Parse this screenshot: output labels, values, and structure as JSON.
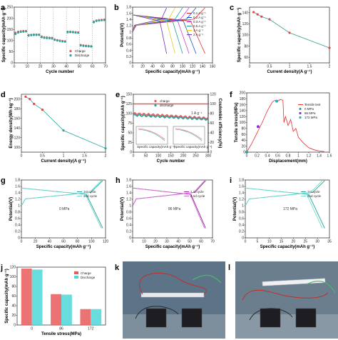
{
  "chart_data": [
    {
      "panel": "a",
      "type": "scatter",
      "xlabel": "Cycle number",
      "ylabel": "Specific capacity(mAh g⁻¹)",
      "xlim": [
        0,
        70
      ],
      "ylim": [
        0,
        250
      ],
      "xticks": [
        0,
        10,
        20,
        30,
        40,
        50,
        60,
        70
      ],
      "yticks": [
        0,
        50,
        100,
        150,
        200,
        250
      ],
      "grid_lines_x": [
        10,
        20,
        30,
        40,
        50,
        60
      ],
      "legend": "lower-right",
      "series": [
        {
          "name": "Charge",
          "color": "#e85a5a",
          "x": [
            1,
            3,
            5,
            7,
            9,
            11,
            13,
            15,
            17,
            19,
            21,
            23,
            25,
            27,
            29,
            31,
            33,
            35,
            37,
            39,
            41,
            43,
            45,
            47,
            49,
            51,
            53,
            55,
            57,
            59,
            61,
            63,
            65,
            67,
            69
          ],
          "y": [
            135,
            140,
            142,
            143,
            143,
            125,
            126,
            127,
            127,
            127,
            118,
            115,
            114,
            113,
            112,
            105,
            102,
            100,
            98,
            97,
            140,
            140,
            139,
            138,
            137,
            80,
            78,
            77,
            76,
            75,
            185,
            190,
            192,
            193,
            194
          ]
        },
        {
          "name": "Discharge",
          "color": "#2aa19a",
          "x": [
            1,
            3,
            5,
            7,
            9,
            11,
            13,
            15,
            17,
            19,
            21,
            23,
            25,
            27,
            29,
            31,
            33,
            35,
            37,
            39,
            41,
            43,
            45,
            47,
            49,
            51,
            53,
            55,
            57,
            59,
            61,
            63,
            65,
            67,
            69
          ],
          "y": [
            130,
            136,
            139,
            140,
            141,
            122,
            124,
            125,
            125,
            125,
            115,
            112,
            111,
            110,
            109,
            103,
            100,
            98,
            96,
            95,
            137,
            138,
            137,
            136,
            135,
            78,
            76,
            75,
            74,
            73,
            182,
            188,
            190,
            191,
            192
          ]
        }
      ]
    },
    {
      "panel": "b",
      "type": "line",
      "xlabel": "Specific capacity(mAh g⁻¹)",
      "ylabel": "Potential(V)",
      "xlim": [
        0,
        160
      ],
      "ylim": [
        0.0,
        1.8
      ],
      "xticks": [
        0,
        20,
        40,
        60,
        80,
        100,
        120,
        140,
        160
      ],
      "yticks": [
        0.0,
        0.2,
        0.4,
        0.6,
        0.8,
        1.0,
        1.2,
        1.4,
        1.6,
        1.8
      ],
      "legend": "top-right",
      "series": [
        {
          "name": "0.1 A g⁻¹",
          "color": "#e03030",
          "capacity": 145
        },
        {
          "name": "0.2 A g⁻¹",
          "color": "#2050d0",
          "capacity": 127
        },
        {
          "name": "0.3 A g⁻¹",
          "color": "#d040d0",
          "capacity": 113
        },
        {
          "name": "0.5 A g⁻¹",
          "color": "#20a0a0",
          "capacity": 100
        },
        {
          "name": "1 A g⁻¹",
          "color": "#e0d020",
          "capacity": 85
        },
        {
          "name": "2 A g⁻¹",
          "color": "#7030b0",
          "capacity": 68
        }
      ]
    },
    {
      "panel": "c",
      "type": "line",
      "xlabel": "Current density(A g⁻¹)",
      "ylabel": "Specific capacity(mAh g⁻¹)",
      "xlim": [
        0.0,
        2.0
      ],
      "ylim": [
        50,
        150
      ],
      "xticks": [
        0.0,
        0.5,
        1.0,
        1.5,
        2.0
      ],
      "yticks": [
        60,
        80,
        100,
        120,
        140
      ],
      "series": [
        {
          "color": "#3a9c8f",
          "x": [
            0.1,
            0.2,
            0.3,
            0.5,
            1.0,
            2.0
          ],
          "y": [
            141,
            137,
            133,
            128,
            104,
            77
          ]
        }
      ]
    },
    {
      "panel": "d",
      "type": "line",
      "xlabel": "Current density(A g⁻¹)",
      "ylabel": "Energy density(Wh kg⁻¹)",
      "xlim": [
        0.0,
        2.0
      ],
      "ylim": [
        90,
        210
      ],
      "xticks": [
        0.0,
        0.5,
        1.0,
        1.5,
        2.0
      ],
      "yticks": [
        100,
        120,
        140,
        160,
        180,
        200
      ],
      "series": [
        {
          "color": "#2ba7a0",
          "x": [
            0.1,
            0.2,
            0.3,
            0.5,
            1.0,
            2.0
          ],
          "y": [
            205,
            200,
            190,
            178,
            135,
            98
          ]
        }
      ]
    },
    {
      "panel": "e",
      "type": "scatter",
      "xlabel": "Cycle number",
      "ylabel": "Specific capacity(mAh g⁻¹)",
      "y2label": "Coulombic efficiency(%)",
      "xlim": [
        0,
        300
      ],
      "ylim": [
        0,
        150
      ],
      "y2lim": [
        0,
        120
      ],
      "xticks": [
        0,
        50,
        100,
        150,
        200,
        250,
        300
      ],
      "yticks": [
        0,
        25,
        50,
        75,
        100,
        125,
        150
      ],
      "y2ticks": [
        0,
        20,
        40,
        60,
        80,
        100,
        120
      ],
      "annotation": "1 A g⁻¹",
      "legend": "top-center",
      "inset_labels": [
        "Specific capacity(mAh g⁻¹)",
        "Specific capacity(mAh g⁻¹)"
      ],
      "series": [
        {
          "name": "charge",
          "color": "#e85a5a",
          "x_start": 1,
          "x_end": 300,
          "y_start": 100,
          "y_end": 88
        },
        {
          "name": "discharge",
          "color": "#2aa19a",
          "x_start": 1,
          "x_end": 300,
          "y_start": 96,
          "y_end": 85
        },
        {
          "name": "coulombic efficiency",
          "color": "#e85a5a",
          "x_start": 1,
          "x_end": 300,
          "y2_value": 100
        }
      ]
    },
    {
      "panel": "f",
      "type": "line",
      "xlabel": "Displacement(mm)",
      "ylabel": "Tensile stress(MPa)",
      "xlim": [
        0.0,
        1.6
      ],
      "ylim": [
        0,
        200
      ],
      "xticks": [
        0.0,
        0.2,
        0.4,
        0.6,
        0.8,
        1.0,
        1.2,
        1.4,
        1.6
      ],
      "yticks": [
        0,
        20,
        40,
        60,
        80,
        100,
        120,
        140,
        160,
        180,
        200
      ],
      "legend": "top-right",
      "series": [
        {
          "name": "Tensile test",
          "color": "#e03030",
          "x": [
            0.0,
            0.1,
            0.2,
            0.3,
            0.4,
            0.5,
            0.55,
            0.6,
            0.65,
            0.7,
            0.72,
            0.75,
            0.8,
            0.85,
            0.9,
            0.95,
            1.0,
            1.1,
            1.2,
            1.3,
            1.4,
            1.5
          ],
          "y": [
            0,
            30,
            65,
            100,
            140,
            170,
            175,
            172,
            178,
            175,
            100,
            120,
            90,
            110,
            70,
            80,
            50,
            30,
            15,
            8,
            4,
            2
          ]
        },
        {
          "name": "0 MPa",
          "color": "#2aa19a",
          "points": [
            [
              0.0,
              0
            ]
          ]
        },
        {
          "name": "86 MPa",
          "color": "#8a2be2",
          "points": [
            [
              0.22,
              86
            ]
          ]
        },
        {
          "name": "172 MPa",
          "color": "#20b0c0",
          "points": [
            [
              0.58,
              172
            ]
          ]
        }
      ]
    },
    {
      "panel": "g",
      "type": "line",
      "xlabel": "Specific capacity(mAh g⁻¹)",
      "ylabel": "Potential(V)",
      "xlim": [
        0,
        120
      ],
      "ylim": [
        0.0,
        1.8
      ],
      "xticks": [
        0,
        20,
        40,
        60,
        80,
        100,
        120
      ],
      "yticks": [
        0.0,
        0.2,
        0.4,
        0.6,
        0.8,
        1.0,
        1.2,
        1.4,
        1.6,
        1.8
      ],
      "annotation": "0 MPa",
      "legend": "top-right",
      "series": [
        {
          "name": "1st cycle",
          "color": "#2aa19a",
          "capacity": 116
        },
        {
          "name": "2nd cycle",
          "color": "#6fd6d0",
          "capacity": 114
        }
      ]
    },
    {
      "panel": "h",
      "type": "line",
      "xlabel": "Specific capacity(mAh g⁻¹)",
      "ylabel": "Potential(V)",
      "xlim": [
        0,
        70
      ],
      "ylim": [
        0.0,
        1.8
      ],
      "xticks": [
        0,
        10,
        20,
        30,
        40,
        50,
        60,
        70
      ],
      "yticks": [
        0.0,
        0.2,
        0.4,
        0.6,
        0.8,
        1.0,
        1.2,
        1.4,
        1.6,
        1.8
      ],
      "annotation": "86 MPa",
      "legend": "top-right",
      "series": [
        {
          "name": "1 st cycle",
          "color": "#a020a0",
          "capacity": 64
        },
        {
          "name": "2 nd cycle",
          "color": "#d070d0",
          "capacity": 63
        }
      ]
    },
    {
      "panel": "i",
      "type": "line",
      "xlabel": "Specific capacity(mAh g⁻¹)",
      "ylabel": "Potential(V)",
      "xlim": [
        0,
        35
      ],
      "ylim": [
        0.0,
        1.8
      ],
      "xticks": [
        0,
        5,
        10,
        15,
        20,
        25,
        30,
        35
      ],
      "yticks": [
        0.0,
        0.2,
        0.4,
        0.6,
        0.8,
        1.0,
        1.2,
        1.4,
        1.6,
        1.8
      ],
      "annotation": "172 MPa",
      "legend": "top-right",
      "series": [
        {
          "name": "1st cycle",
          "color": "#2aa19a",
          "capacity": 33
        },
        {
          "name": "2nd cycle",
          "color": "#70e0d0",
          "capacity": 32
        }
      ]
    },
    {
      "panel": "j",
      "type": "bar",
      "xlabel": "Tensile stress(MPa)",
      "ylabel": "Specific capacity(mAh g⁻¹)",
      "categories": [
        "0",
        "86",
        "172"
      ],
      "ylim": [
        0,
        120
      ],
      "yticks": [
        0,
        20,
        40,
        60,
        80,
        100,
        120
      ],
      "legend": "top-right",
      "series": [
        {
          "name": "Charge",
          "color": "#e85a5a",
          "values": [
            117,
            64,
            33
          ]
        },
        {
          "name": "Discharge",
          "color": "#4fd6d8",
          "values": [
            115,
            63,
            33
          ]
        }
      ]
    }
  ],
  "photos": [
    {
      "panel": "k",
      "background": "#5d7388"
    },
    {
      "panel": "l",
      "background": "#6b7e8e"
    }
  ]
}
